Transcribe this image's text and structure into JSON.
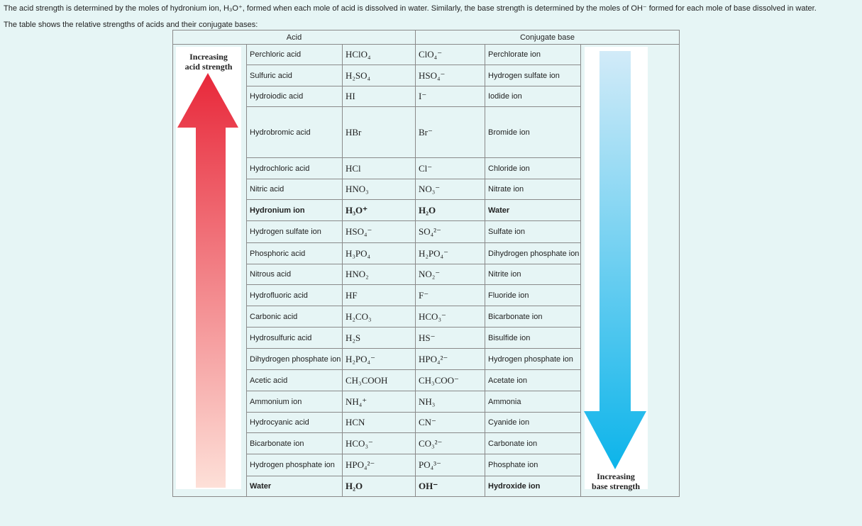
{
  "intro": [
    "The acid strength is determined by the moles of hydronium ion, H₃O⁺, formed when each mole of acid is dissolved in water. Similarly, the base strength is determined by the moles of OH⁻ formed for each mole of base dissolved in water.",
    "The table shows the relative strengths of acids and their conjugate bases:"
  ],
  "table": {
    "headers": [
      "Acid",
      "Conjugate base"
    ],
    "acid_label": [
      "Increasing",
      "acid strength"
    ],
    "base_label": [
      "Increasing",
      "base strength"
    ],
    "rows": [
      [
        "Perchloric acid",
        "HClO₄",
        "ClO₄⁻",
        "Perchlorate ion"
      ],
      [
        "Sulfuric acid",
        "H₂SO₄",
        "HSO₄⁻",
        "Hydrogen sulfate ion"
      ],
      [
        "Hydroiodic acid",
        "HI",
        "I⁻",
        "Iodide ion"
      ],
      [
        "Hydrobromic acid",
        "HBr",
        "Br⁻",
        "Bromide ion"
      ],
      [
        "Hydrochloric acid",
        "HCl",
        "Cl⁻",
        "Chloride ion"
      ],
      [
        "Nitric acid",
        "HNO₃",
        "NO₃⁻",
        "Nitrate ion"
      ],
      [
        "Hydronium ion",
        "H₃O⁺",
        "H₂O",
        "Water"
      ],
      [
        "Hydrogen sulfate ion",
        "HSO₄⁻",
        "SO₄²⁻",
        "Sulfate ion"
      ],
      [
        "Phosphoric acid",
        "H₃PO₄",
        "H₂PO₄⁻",
        "Dihydrogen phosphate ion"
      ],
      [
        "Nitrous acid",
        "HNO₂",
        "NO₂⁻",
        "Nitrite ion"
      ],
      [
        "Hydrofluoric acid",
        "HF",
        "F⁻",
        "Fluoride ion"
      ],
      [
        "Carbonic acid",
        "H₂CO₃",
        "HCO₃⁻",
        "Bicarbonate  ion"
      ],
      [
        "Hydrosulfuric acid",
        "H₂S",
        "HS⁻",
        "Bisulfide ion"
      ],
      [
        "Dihydrogen phosphate ion",
        "H₂PO₄⁻",
        "HPO₄²⁻",
        "Hydrogen phosphate ion"
      ],
      [
        "Acetic acid",
        "CH₃COOH",
        "CH₃COO⁻",
        "Acetate ion"
      ],
      [
        "Ammonium ion",
        "NH₄⁺",
        "NH₃",
        "Ammonia"
      ],
      [
        "Hydrocyanic acid",
        "HCN",
        "CN⁻",
        "Cyanide ion"
      ],
      [
        "Bicarbonate ion",
        "HCO₃⁻",
        "CO₃²⁻",
        "Carbonate ion"
      ],
      [
        "Hydrogen phosphate ion",
        "HPO₄²⁻",
        "PO₄³⁻",
        "Phosphate ion"
      ],
      [
        "Water",
        "H₂O",
        "OH⁻",
        "Hydroxide ion"
      ]
    ]
  }
}
